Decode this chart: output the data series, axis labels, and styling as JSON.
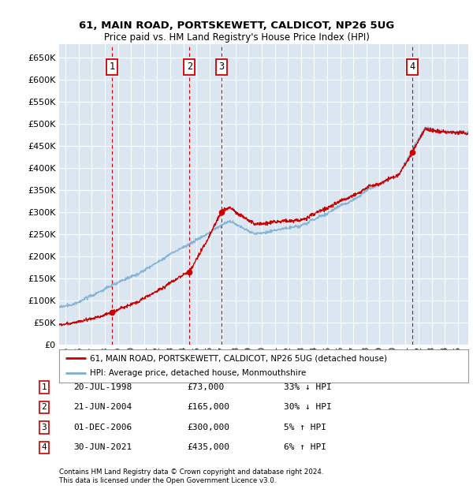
{
  "title1": "61, MAIN ROAD, PORTSKEWETT, CALDICOT, NP26 5UG",
  "title2": "Price paid vs. HM Land Registry's House Price Index (HPI)",
  "background_color": "#dce6f1",
  "plot_bg_color": "#dce6f1",
  "grid_color": "#ffffff",
  "sale_line_color": "#cc0000",
  "hpi_line_color": "#7bafd4",
  "sale_marker_color": "#cc0000",
  "legend_sale_label": "61, MAIN ROAD, PORTSKEWETT, CALDICOT, NP26 5UG (detached house)",
  "legend_hpi_label": "HPI: Average price, detached house, Monmouthshire",
  "footer1": "Contains HM Land Registry data © Crown copyright and database right 2024.",
  "footer2": "This data is licensed under the Open Government Licence v3.0.",
  "sales": [
    {
      "label": "1",
      "date_num": 1998.55,
      "price": 73000
    },
    {
      "label": "2",
      "date_num": 2004.47,
      "price": 165000
    },
    {
      "label": "3",
      "date_num": 2006.92,
      "price": 300000
    },
    {
      "label": "4",
      "date_num": 2021.5,
      "price": 435000
    }
  ],
  "table_rows": [
    [
      "1",
      "20-JUL-1998",
      "£73,000",
      "33% ↓ HPI"
    ],
    [
      "2",
      "21-JUN-2004",
      "£165,000",
      "30% ↓ HPI"
    ],
    [
      "3",
      "01-DEC-2006",
      "£300,000",
      "5% ↑ HPI"
    ],
    [
      "4",
      "30-JUN-2021",
      "£435,000",
      "6% ↑ HPI"
    ]
  ],
  "ylim": [
    0,
    680000
  ],
  "yticks": [
    0,
    50000,
    100000,
    150000,
    200000,
    250000,
    300000,
    350000,
    400000,
    450000,
    500000,
    550000,
    600000,
    650000
  ],
  "xlim_start": 1994.5,
  "xlim_end": 2025.8,
  "xticks": [
    1995,
    1996,
    1997,
    1998,
    1999,
    2000,
    2001,
    2002,
    2003,
    2004,
    2005,
    2006,
    2007,
    2008,
    2009,
    2010,
    2011,
    2012,
    2013,
    2014,
    2015,
    2016,
    2017,
    2018,
    2019,
    2020,
    2021,
    2022,
    2023,
    2024,
    2025
  ]
}
